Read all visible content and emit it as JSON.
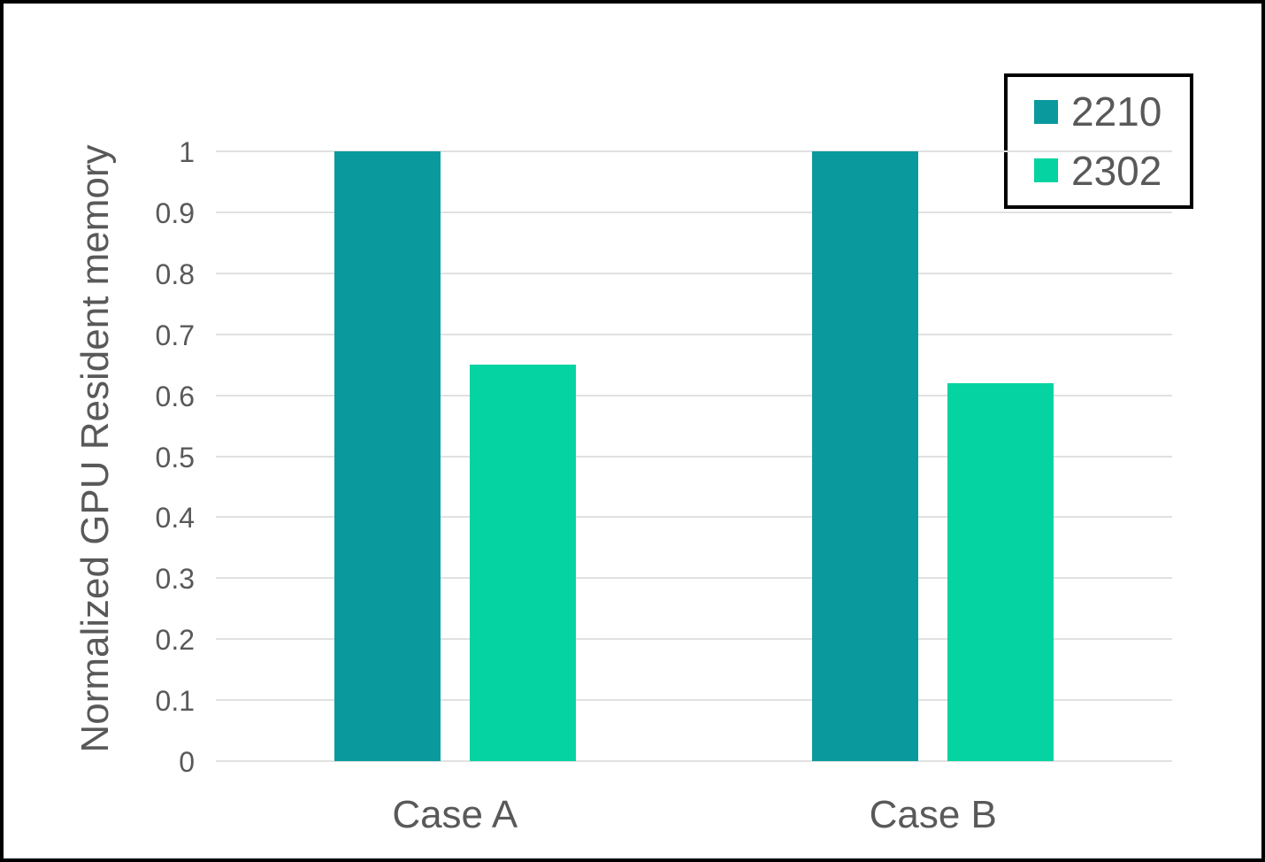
{
  "chart_data": {
    "type": "bar",
    "title": "",
    "xlabel": "",
    "ylabel": "Normalized GPU Resident memory",
    "categories": [
      "Case A",
      "Case B"
    ],
    "series": [
      {
        "name": "2210",
        "color": "#0a9a9e",
        "values": [
          1,
          1
        ]
      },
      {
        "name": "2302",
        "color": "#06d3a2",
        "values": [
          0.65,
          0.62
        ]
      }
    ],
    "ylim": [
      0,
      1
    ],
    "ytick_step": 0.1,
    "grid": true,
    "legend_position": "top-right",
    "colors": {
      "text": "#595959",
      "gridline": "#e1e1e1",
      "figure_border": "#000000",
      "legend_border": "#000000",
      "background": "#ffffff"
    }
  }
}
